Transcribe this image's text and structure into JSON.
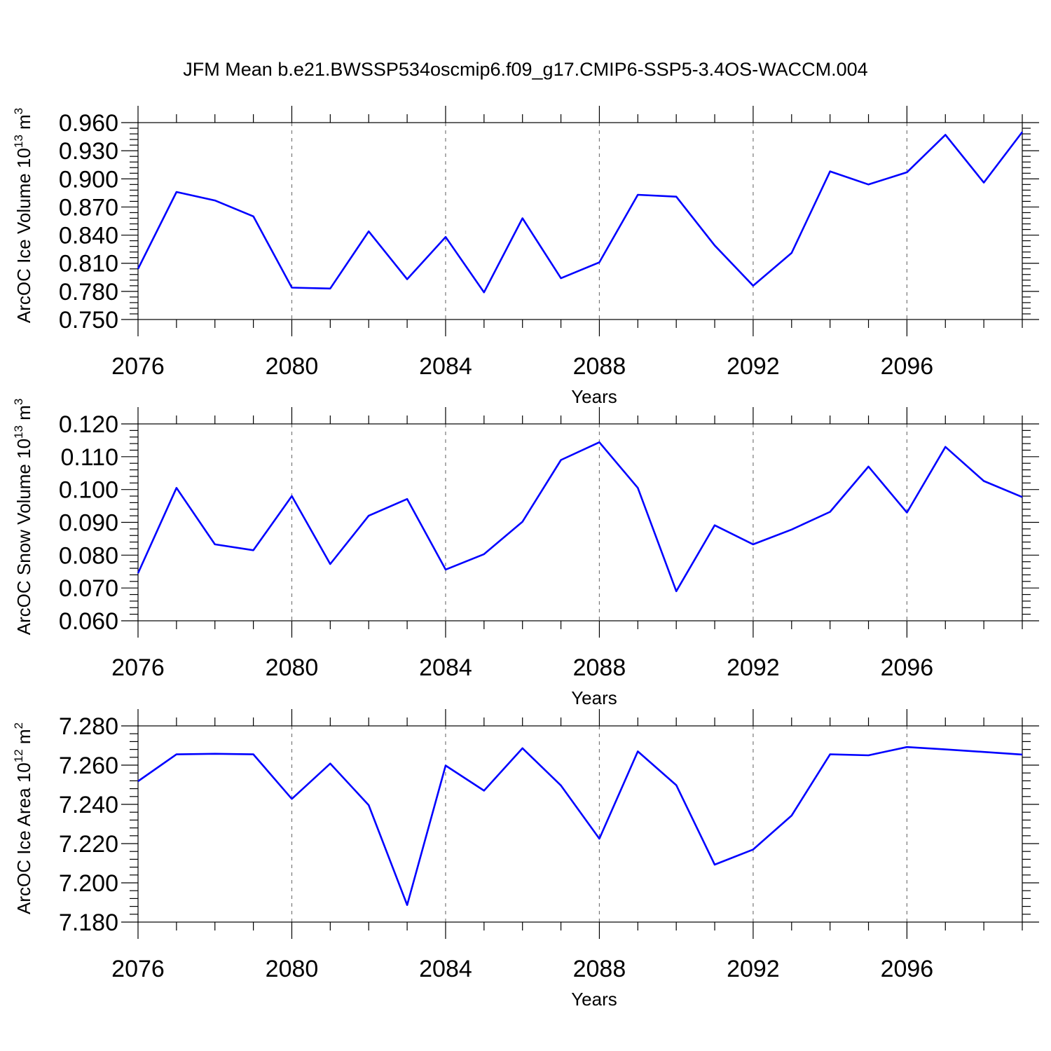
{
  "title": "JFM Mean b.e21.BWSSP534oscmip6.f09_g17.CMIP6-SSP5-3.4OS-WACCM.004",
  "chart_data": [
    {
      "type": "line",
      "ylabel": "ArcOC Ice Volume 10",
      "ylabel_exp": "13",
      "ylabel_unit": " m",
      "ylabel_unit_exp": "3",
      "xlabel": "Years",
      "xlim": [
        2076,
        2099
      ],
      "ylim": [
        0.75,
        0.96
      ],
      "yticks": [
        "0.750",
        "0.780",
        "0.810",
        "0.840",
        "0.870",
        "0.900",
        "0.930",
        "0.960"
      ],
      "xticks": [
        "2076",
        "2080",
        "2084",
        "2088",
        "2092",
        "2096"
      ],
      "x": [
        2076,
        2077,
        2078,
        2079,
        2080,
        2081,
        2082,
        2083,
        2084,
        2085,
        2086,
        2087,
        2088,
        2089,
        2090,
        2091,
        2092,
        2093,
        2094,
        2095,
        2096,
        2097,
        2098,
        2099
      ],
      "values": [
        0.804,
        0.886,
        0.877,
        0.86,
        0.784,
        0.783,
        0.844,
        0.793,
        0.838,
        0.779,
        0.858,
        0.794,
        0.811,
        0.883,
        0.881,
        0.829,
        0.786,
        0.821,
        0.908,
        0.894,
        0.907,
        0.947,
        0.896,
        0.95
      ],
      "grid": "vertical dashed at major x ticks",
      "line_color": "#0000ff"
    },
    {
      "type": "line",
      "ylabel": "ArcOC Snow Volume 10",
      "ylabel_exp": "13",
      "ylabel_unit": " m",
      "ylabel_unit_exp": "3",
      "xlabel": "Years",
      "xlim": [
        2076,
        2099
      ],
      "ylim": [
        0.06,
        0.12
      ],
      "yticks": [
        "0.060",
        "0.070",
        "0.080",
        "0.090",
        "0.100",
        "0.110",
        "0.120"
      ],
      "xticks": [
        "2076",
        "2080",
        "2084",
        "2088",
        "2092",
        "2096"
      ],
      "x": [
        2076,
        2077,
        2078,
        2079,
        2080,
        2081,
        2082,
        2083,
        2084,
        2085,
        2086,
        2087,
        2088,
        2089,
        2090,
        2091,
        2092,
        2093,
        2094,
        2095,
        2096,
        2097,
        2098,
        2099
      ],
      "values": [
        0.0745,
        0.1005,
        0.0833,
        0.0815,
        0.098,
        0.0773,
        0.092,
        0.0971,
        0.0756,
        0.0803,
        0.0902,
        0.109,
        0.1144,
        0.1005,
        0.069,
        0.0891,
        0.0833,
        0.0878,
        0.0932,
        0.107,
        0.093,
        0.113,
        0.1026,
        0.0977
      ],
      "grid": "vertical dashed at major x ticks",
      "line_color": "#0000ff"
    },
    {
      "type": "line",
      "ylabel": "ArcOC Ice Area 10",
      "ylabel_exp": "12",
      "ylabel_unit": " m",
      "ylabel_unit_exp": "2",
      "xlabel": "Years",
      "xlim": [
        2076,
        2099
      ],
      "ylim": [
        7.18,
        7.28
      ],
      "yticks": [
        "7.180",
        "7.200",
        "7.220",
        "7.240",
        "7.260",
        "7.280"
      ],
      "xticks": [
        "2076",
        "2080",
        "2084",
        "2088",
        "2092",
        "2096"
      ],
      "x": [
        2076,
        2077,
        2078,
        2079,
        2080,
        2081,
        2082,
        2083,
        2084,
        2085,
        2086,
        2087,
        2088,
        2089,
        2090,
        2091,
        2092,
        2093,
        2094,
        2095,
        2096,
        2097,
        2098,
        2099
      ],
      "values": [
        7.2518,
        7.2655,
        7.2658,
        7.2655,
        7.2428,
        7.2608,
        7.2396,
        7.1887,
        7.2598,
        7.247,
        7.2686,
        7.2496,
        7.2225,
        7.267,
        7.2498,
        7.2093,
        7.217,
        7.2343,
        7.2655,
        7.265,
        7.2692,
        7.268,
        7.2667,
        7.2654
      ],
      "grid": "vertical dashed at major x ticks",
      "line_color": "#0000ff"
    }
  ]
}
